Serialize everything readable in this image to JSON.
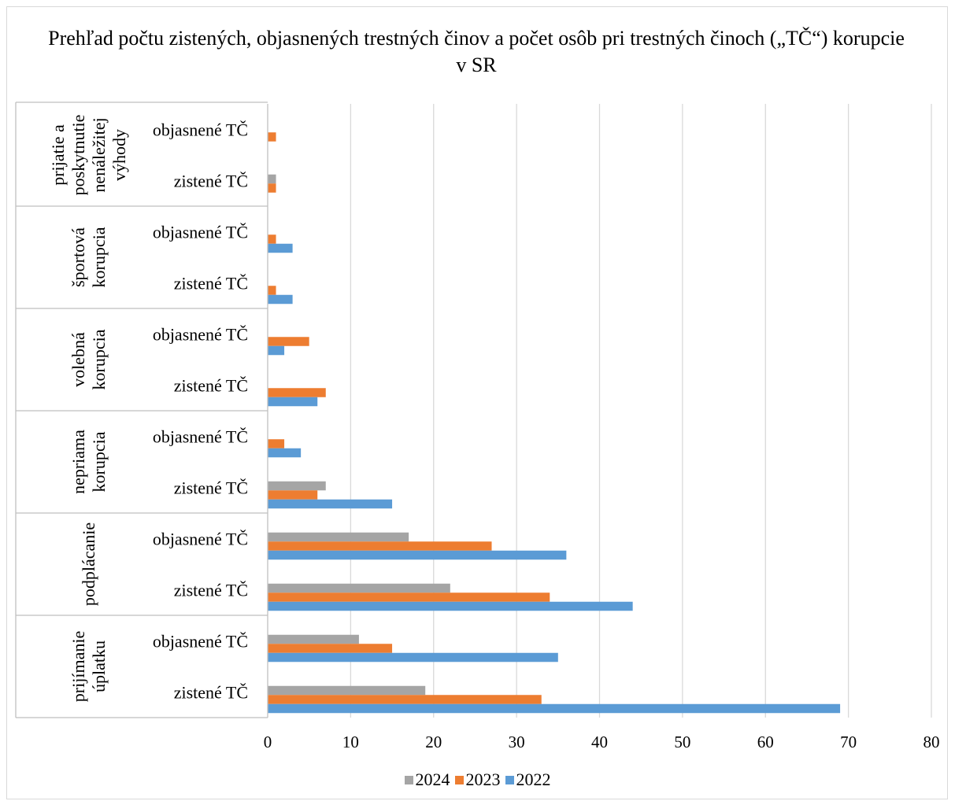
{
  "chart_data": {
    "type": "bar",
    "orientation": "horizontal",
    "title": "Prehľad počtu zistených, objasnených trestných činov a počet osôb pri trestných činoch („TČ“) korupcie v SR",
    "groups": [
      {
        "name": "prijatie a poskytnutie nenáležitej výhody",
        "categories": [
          "objasnené TČ",
          "zistené TČ"
        ]
      },
      {
        "name": "športová korupcia",
        "categories": [
          "objasnené TČ",
          "zistené TČ"
        ]
      },
      {
        "name": "volebná korupcia",
        "categories": [
          "objasnené TČ",
          "zistené TČ"
        ]
      },
      {
        "name": "nepriama korupcia",
        "categories": [
          "objasnené TČ",
          "zistené TČ"
        ]
      },
      {
        "name": "podplácanie",
        "categories": [
          "objasnené TČ",
          "zistené TČ"
        ]
      },
      {
        "name": "prijímanie úplatku",
        "categories": [
          "objasnené TČ",
          "zistené TČ"
        ]
      }
    ],
    "series": [
      {
        "name": "2024",
        "color": "#a5a5a5",
        "values": [
          0,
          1,
          0,
          0,
          0,
          0,
          0,
          7,
          17,
          22,
          11,
          19
        ]
      },
      {
        "name": "2023",
        "color": "#ed7d31",
        "values": [
          1,
          1,
          1,
          1,
          5,
          7,
          2,
          6,
          27,
          34,
          15,
          33
        ]
      },
      {
        "name": "2022",
        "color": "#5b9bd5",
        "values": [
          0,
          0,
          3,
          3,
          2,
          6,
          4,
          15,
          36,
          44,
          35,
          69
        ]
      }
    ],
    "xlim": [
      0,
      80
    ],
    "xticks": [
      0,
      10,
      20,
      30,
      40,
      50,
      60,
      70,
      80
    ],
    "grid": true,
    "legend_position": "bottom"
  }
}
